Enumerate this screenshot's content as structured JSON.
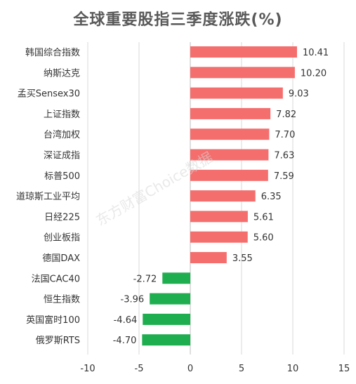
{
  "chart_data": {
    "type": "bar",
    "orientation": "horizontal",
    "title": "全球重要股指三季度涨跌(%)",
    "categories": [
      "韩国综合指数",
      "纳斯达克",
      "孟买Sensex30",
      "上证指数",
      "台湾加权",
      "深证成指",
      "标普500",
      "道琼斯工业平均",
      "日经225",
      "创业板指",
      "德国DAX",
      "法国CAC40",
      "恒生指数",
      "英国富时100",
      "俄罗斯RTS"
    ],
    "values": [
      10.41,
      10.2,
      9.03,
      7.82,
      7.7,
      7.63,
      7.59,
      6.35,
      5.61,
      5.6,
      3.55,
      -2.72,
      -3.96,
      -4.64,
      -4.7
    ],
    "value_labels": [
      "10.41",
      "10.20",
      "9.03",
      "7.82",
      "7.70",
      "7.63",
      "7.59",
      "6.35",
      "5.61",
      "5.60",
      "3.55",
      "-2.72",
      "-3.96",
      "-4.64",
      "-4.70"
    ],
    "xlim": [
      -10,
      15
    ],
    "xticks": [
      -10,
      -5,
      0,
      5,
      10,
      15
    ],
    "xtick_labels": [
      "-10",
      "-5",
      "0",
      "5",
      "10",
      "15"
    ],
    "grid": "vertical",
    "colors": {
      "positive": "#f56e6e",
      "negative": "#1fae4f",
      "grid": "#d9d9d9",
      "axis": "#bfbfbf"
    }
  },
  "watermark": "东方财富Choice数据"
}
